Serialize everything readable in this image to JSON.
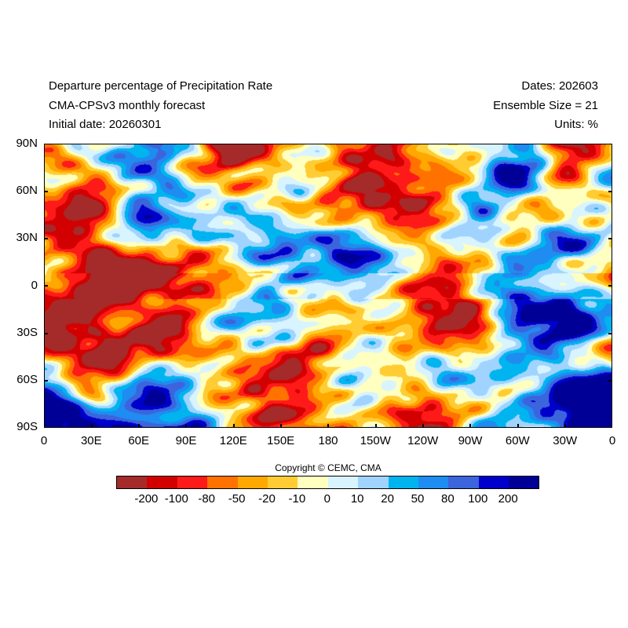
{
  "header": {
    "left": [
      "Departure percentage of Precipitation Rate",
      "CMA-CPSv3 monthly forecast",
      "Initial date: 20260301"
    ],
    "right": [
      "Dates: 202603",
      "Ensemble Size = 21",
      "Units: %"
    ]
  },
  "map": {
    "y_ticks": [
      "90N",
      "60N",
      "30N",
      "0",
      "30S",
      "60S",
      "90S"
    ],
    "x_ticks": [
      "0",
      "30E",
      "60E",
      "90E",
      "120E",
      "150E",
      "180",
      "150W",
      "120W",
      "90W",
      "60W",
      "30W",
      "0"
    ],
    "field": "precipitation rate departure percentage"
  },
  "copyright": "Copyright © CEMC, CMA",
  "colorbar": {
    "colors": [
      "#a52a2a",
      "#d20000",
      "#ff1a1a",
      "#ff7200",
      "#ffa800",
      "#ffcd33",
      "#ffffc0",
      "#d8f4ff",
      "#a0d4ff",
      "#00b4f0",
      "#1e8cf0",
      "#3c64dc",
      "#0000cd",
      "#000096"
    ],
    "labels": [
      "-200",
      "-100",
      "-80",
      "-50",
      "-20",
      "-10",
      "0",
      "10",
      "20",
      "50",
      "80",
      "100",
      "200"
    ]
  }
}
